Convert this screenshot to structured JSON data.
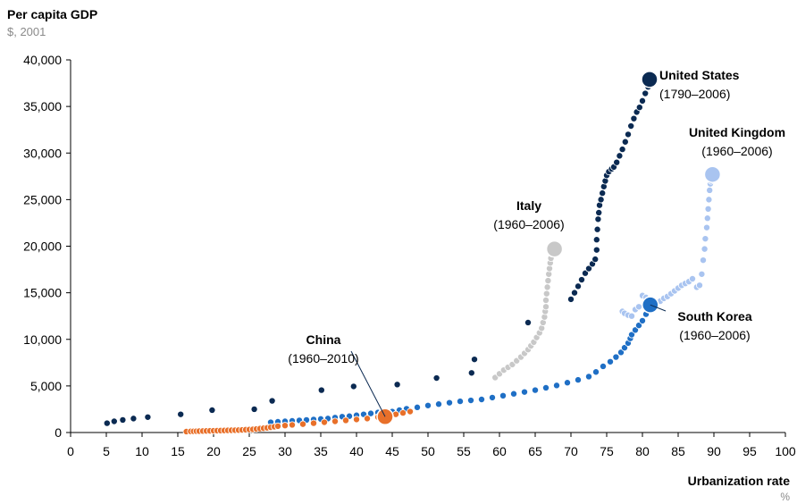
{
  "chart_data": {
    "type": "scatter",
    "ylabel": "Per capita GDP",
    "ylabel_unit": "$, 2001",
    "xlabel": "Urbanization rate",
    "xlabel_unit": "%",
    "xlim": [
      0,
      100
    ],
    "ylim": [
      0,
      40000
    ],
    "x_ticks": [
      0,
      5,
      10,
      15,
      20,
      25,
      30,
      35,
      40,
      45,
      50,
      55,
      60,
      65,
      70,
      75,
      80,
      85,
      90,
      95,
      100
    ],
    "y_ticks": [
      0,
      5000,
      10000,
      15000,
      20000,
      25000,
      30000,
      35000,
      40000
    ],
    "y_tick_labels": [
      "0",
      "5,000",
      "10,000",
      "15,000",
      "20,000",
      "25,000",
      "30,000",
      "35,000",
      "40,000"
    ],
    "grid": false,
    "series": [
      {
        "name": "United States",
        "period": "(1790–2006)",
        "color": "#0b2a52",
        "points": [
          [
            5.1,
            1000
          ],
          [
            6.1,
            1200
          ],
          [
            7.3,
            1350
          ],
          [
            8.8,
            1500
          ],
          [
            10.8,
            1650
          ],
          [
            15.4,
            1950
          ],
          [
            19.8,
            2400
          ],
          [
            25.7,
            2500
          ],
          [
            28.2,
            3400
          ],
          [
            35.1,
            4550
          ],
          [
            39.6,
            4950
          ],
          [
            45.7,
            5150
          ],
          [
            51.2,
            5850
          ],
          [
            56.1,
            6400
          ],
          [
            56.5,
            7850
          ],
          [
            64.0,
            11800
          ],
          [
            70.0,
            14300
          ],
          [
            70.5,
            15000
          ],
          [
            71.0,
            15700
          ],
          [
            71.5,
            16400
          ],
          [
            72.0,
            17100
          ],
          [
            72.5,
            17600
          ],
          [
            73.0,
            18100
          ],
          [
            73.4,
            18600
          ],
          [
            73.6,
            19600
          ],
          [
            73.6,
            20700
          ],
          [
            73.7,
            21800
          ],
          [
            73.8,
            22900
          ],
          [
            73.9,
            23600
          ],
          [
            74.0,
            24400
          ],
          [
            74.2,
            25000
          ],
          [
            74.4,
            25700
          ],
          [
            74.6,
            26400
          ],
          [
            74.8,
            27000
          ],
          [
            75.0,
            27600
          ],
          [
            75.3,
            28000
          ],
          [
            75.7,
            28300
          ],
          [
            76.0,
            28500
          ],
          [
            76.4,
            29000
          ],
          [
            76.8,
            29700
          ],
          [
            77.2,
            30400
          ],
          [
            77.6,
            31200
          ],
          [
            78.0,
            32000
          ],
          [
            78.4,
            32900
          ],
          [
            78.8,
            33700
          ],
          [
            79.2,
            34400
          ],
          [
            79.6,
            34900
          ],
          [
            80.0,
            35600
          ],
          [
            80.4,
            36400
          ],
          [
            80.8,
            37100
          ]
        ],
        "end_point": [
          81.0,
          37900
        ]
      },
      {
        "name": "United Kingdom",
        "period": "(1960–2006)",
        "color": "#a9c4f0",
        "points": [
          [
            77.2,
            13000
          ],
          [
            77.5,
            12800
          ],
          [
            78.0,
            12600
          ],
          [
            78.5,
            12500
          ],
          [
            79.0,
            13200
          ],
          [
            79.5,
            13500
          ],
          [
            80.0,
            14700
          ],
          [
            80.5,
            14500
          ],
          [
            81.0,
            14300
          ],
          [
            81.5,
            14000
          ],
          [
            82.0,
            13900
          ],
          [
            82.5,
            14100
          ],
          [
            83.0,
            14400
          ],
          [
            83.5,
            14600
          ],
          [
            84.0,
            14900
          ],
          [
            84.5,
            15200
          ],
          [
            85.0,
            15500
          ],
          [
            85.5,
            15800
          ],
          [
            86.0,
            16000
          ],
          [
            86.5,
            16200
          ],
          [
            87.0,
            16500
          ],
          [
            87.6,
            15600
          ],
          [
            88.0,
            15800
          ],
          [
            88.3,
            17000
          ],
          [
            88.5,
            18500
          ],
          [
            88.7,
            19700
          ],
          [
            88.8,
            20800
          ],
          [
            89.0,
            22000
          ],
          [
            89.1,
            23000
          ],
          [
            89.2,
            24000
          ],
          [
            89.3,
            25000
          ],
          [
            89.4,
            26000
          ],
          [
            89.5,
            26700
          ],
          [
            89.6,
            27000
          ]
        ],
        "end_point": [
          89.8,
          27700
        ]
      },
      {
        "name": "Italy",
        "period": "(1960–2006)",
        "color": "#c8c8c8",
        "points": [
          [
            59.4,
            5900
          ],
          [
            60.0,
            6300
          ],
          [
            60.6,
            6700
          ],
          [
            61.2,
            7000
          ],
          [
            61.8,
            7300
          ],
          [
            62.4,
            7700
          ],
          [
            63.0,
            8100
          ],
          [
            63.5,
            8500
          ],
          [
            64.0,
            8900
          ],
          [
            64.4,
            9300
          ],
          [
            64.8,
            9700
          ],
          [
            65.2,
            10200
          ],
          [
            65.6,
            10700
          ],
          [
            65.9,
            11200
          ],
          [
            66.1,
            11800
          ],
          [
            66.3,
            12400
          ],
          [
            66.4,
            13000
          ],
          [
            66.5,
            13500
          ],
          [
            66.5,
            14200
          ],
          [
            66.6,
            14900
          ],
          [
            66.7,
            15600
          ],
          [
            66.8,
            16300
          ],
          [
            66.9,
            17000
          ],
          [
            67.0,
            17600
          ],
          [
            67.1,
            18200
          ],
          [
            67.2,
            18700
          ],
          [
            67.3,
            19200
          ],
          [
            67.4,
            19500
          ]
        ],
        "end_point": [
          67.7,
          19700
        ]
      },
      {
        "name": "South Korea",
        "period": "(1960–2006)",
        "color": "#1f6fc5",
        "points": [
          [
            28.0,
            1100
          ],
          [
            29.0,
            1150
          ],
          [
            30.0,
            1200
          ],
          [
            31.0,
            1250
          ],
          [
            32.0,
            1300
          ],
          [
            33.0,
            1350
          ],
          [
            34.0,
            1400
          ],
          [
            35.0,
            1450
          ],
          [
            36.0,
            1500
          ],
          [
            37.0,
            1600
          ],
          [
            38.0,
            1700
          ],
          [
            39.0,
            1750
          ],
          [
            40.0,
            1850
          ],
          [
            41.0,
            1950
          ],
          [
            42.0,
            2050
          ],
          [
            43.0,
            2150
          ],
          [
            44.0,
            2200
          ],
          [
            45.0,
            2250
          ],
          [
            46.0,
            2400
          ],
          [
            47.0,
            2550
          ],
          [
            48.5,
            2700
          ],
          [
            50.0,
            2900
          ],
          [
            51.5,
            3050
          ],
          [
            53.0,
            3200
          ],
          [
            54.5,
            3350
          ],
          [
            56.0,
            3450
          ],
          [
            57.5,
            3550
          ],
          [
            59.0,
            3750
          ],
          [
            60.5,
            3950
          ],
          [
            62.0,
            4150
          ],
          [
            63.5,
            4350
          ],
          [
            65.0,
            4550
          ],
          [
            66.5,
            4800
          ],
          [
            68.0,
            5050
          ],
          [
            69.5,
            5350
          ],
          [
            71.0,
            5650
          ],
          [
            72.5,
            6000
          ],
          [
            73.5,
            6500
          ],
          [
            74.5,
            7100
          ],
          [
            75.5,
            7600
          ],
          [
            76.3,
            8100
          ],
          [
            77.0,
            8600
          ],
          [
            77.5,
            9100
          ],
          [
            78.0,
            9600
          ],
          [
            78.3,
            10100
          ],
          [
            78.5,
            10500
          ],
          [
            79.0,
            11000
          ],
          [
            79.5,
            11500
          ],
          [
            80.0,
            12000
          ],
          [
            80.5,
            12700
          ]
        ],
        "end_point": [
          81.1,
          13700
        ]
      },
      {
        "name": "China",
        "period": "(1960–2010)",
        "color": "#e8702a",
        "points": [
          [
            16.2,
            100
          ],
          [
            16.8,
            120
          ],
          [
            17.2,
            130
          ],
          [
            17.6,
            140
          ],
          [
            18.0,
            150
          ],
          [
            18.5,
            160
          ],
          [
            19.0,
            170
          ],
          [
            19.5,
            180
          ],
          [
            20.0,
            190
          ],
          [
            20.5,
            200
          ],
          [
            21.0,
            210
          ],
          [
            21.5,
            220
          ],
          [
            22.0,
            230
          ],
          [
            22.5,
            240
          ],
          [
            23.0,
            250
          ],
          [
            23.5,
            260
          ],
          [
            24.0,
            280
          ],
          [
            24.5,
            300
          ],
          [
            25.0,
            320
          ],
          [
            25.5,
            340
          ],
          [
            26.0,
            380
          ],
          [
            26.5,
            420
          ],
          [
            27.0,
            460
          ],
          [
            27.5,
            500
          ],
          [
            28.0,
            560
          ],
          [
            28.5,
            620
          ],
          [
            29.0,
            680
          ],
          [
            30.0,
            750
          ],
          [
            31.0,
            820
          ],
          [
            32.5,
            900
          ],
          [
            34.0,
            1000
          ],
          [
            35.5,
            1100
          ],
          [
            37.0,
            1200
          ],
          [
            38.5,
            1300
          ],
          [
            40.0,
            1400
          ],
          [
            41.5,
            1500
          ],
          [
            43.0,
            1650
          ],
          [
            44.5,
            1800
          ],
          [
            45.5,
            1950
          ],
          [
            46.5,
            2100
          ],
          [
            47.5,
            2250
          ]
        ],
        "end_point": [
          44.0,
          1700
        ]
      }
    ],
    "labels": {
      "united_states": {
        "name": "United States",
        "period": "(1790–2006)"
      },
      "united_kingdom": {
        "name": "United Kingdom",
        "period": "(1960–2006)"
      },
      "italy": {
        "name": "Italy",
        "period": "(1960–2006)"
      },
      "south_korea": {
        "name": "South Korea",
        "period": "(1960–2006)"
      },
      "china": {
        "name": "China",
        "period": "(1960–2010)"
      }
    }
  }
}
